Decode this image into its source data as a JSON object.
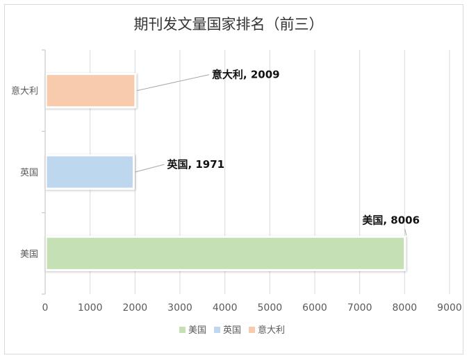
{
  "chart_data": {
    "type": "bar",
    "orientation": "horizontal",
    "title": "期刊发文量国家排名（前三）",
    "xlabel": "",
    "ylabel": "",
    "categories": [
      "美国",
      "英国",
      "意大利"
    ],
    "values": [
      8006,
      1971,
      2009
    ],
    "xlim": [
      0,
      9000
    ],
    "xticks": [
      0,
      1000,
      2000,
      3000,
      4000,
      5000,
      6000,
      7000,
      8000,
      9000
    ],
    "grid": "vertical",
    "legend_position": "bottom",
    "colors": [
      "#c5e0b4",
      "#bdd7ee",
      "#f8cbad"
    ],
    "data_labels": [
      "美国, 8006",
      "英国, 1971",
      "意大利, 2009"
    ]
  }
}
